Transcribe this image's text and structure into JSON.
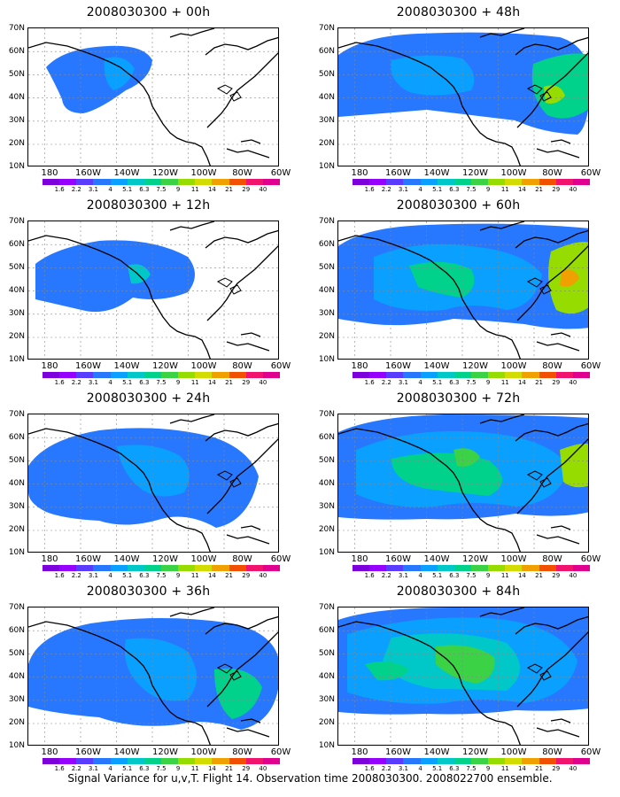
{
  "caption": "Signal Variance for u,v,T. Flight 14. Observation time 2008030300. 2008022700 ensemble.",
  "lat_labels": [
    "70N",
    "60N",
    "50N",
    "40N",
    "30N",
    "20N",
    "10N"
  ],
  "lon_labels": [
    "180",
    "160W",
    "140W",
    "120W",
    "100W",
    "80W",
    "60W"
  ],
  "colorbar": {
    "labels": [
      "1.6",
      "2.2",
      "3.1",
      "4",
      "5.1",
      "6.3",
      "7.5",
      "9",
      "11",
      "14",
      "21",
      "29",
      "40"
    ],
    "colors": [
      "#7d00dc",
      "#9600ff",
      "#5a3cff",
      "#2878ff",
      "#0aa0ff",
      "#00c8c8",
      "#00d28c",
      "#3cd246",
      "#96dc00",
      "#d2dc00",
      "#f0a000",
      "#f05000",
      "#f0146e",
      "#e00090"
    ]
  },
  "panels": [
    {
      "title": "2008030300 + 00h",
      "intensity": 0
    },
    {
      "title": "2008030300 + 12h",
      "intensity": 1
    },
    {
      "title": "2008030300 + 24h",
      "intensity": 2
    },
    {
      "title": "2008030300 + 36h",
      "intensity": 3
    },
    {
      "title": "2008030300 + 48h",
      "intensity": 4
    },
    {
      "title": "2008030300 + 60h",
      "intensity": 5
    },
    {
      "title": "2008030300 + 72h",
      "intensity": 6
    },
    {
      "title": "2008030300 + 84h",
      "intensity": 7
    }
  ]
}
